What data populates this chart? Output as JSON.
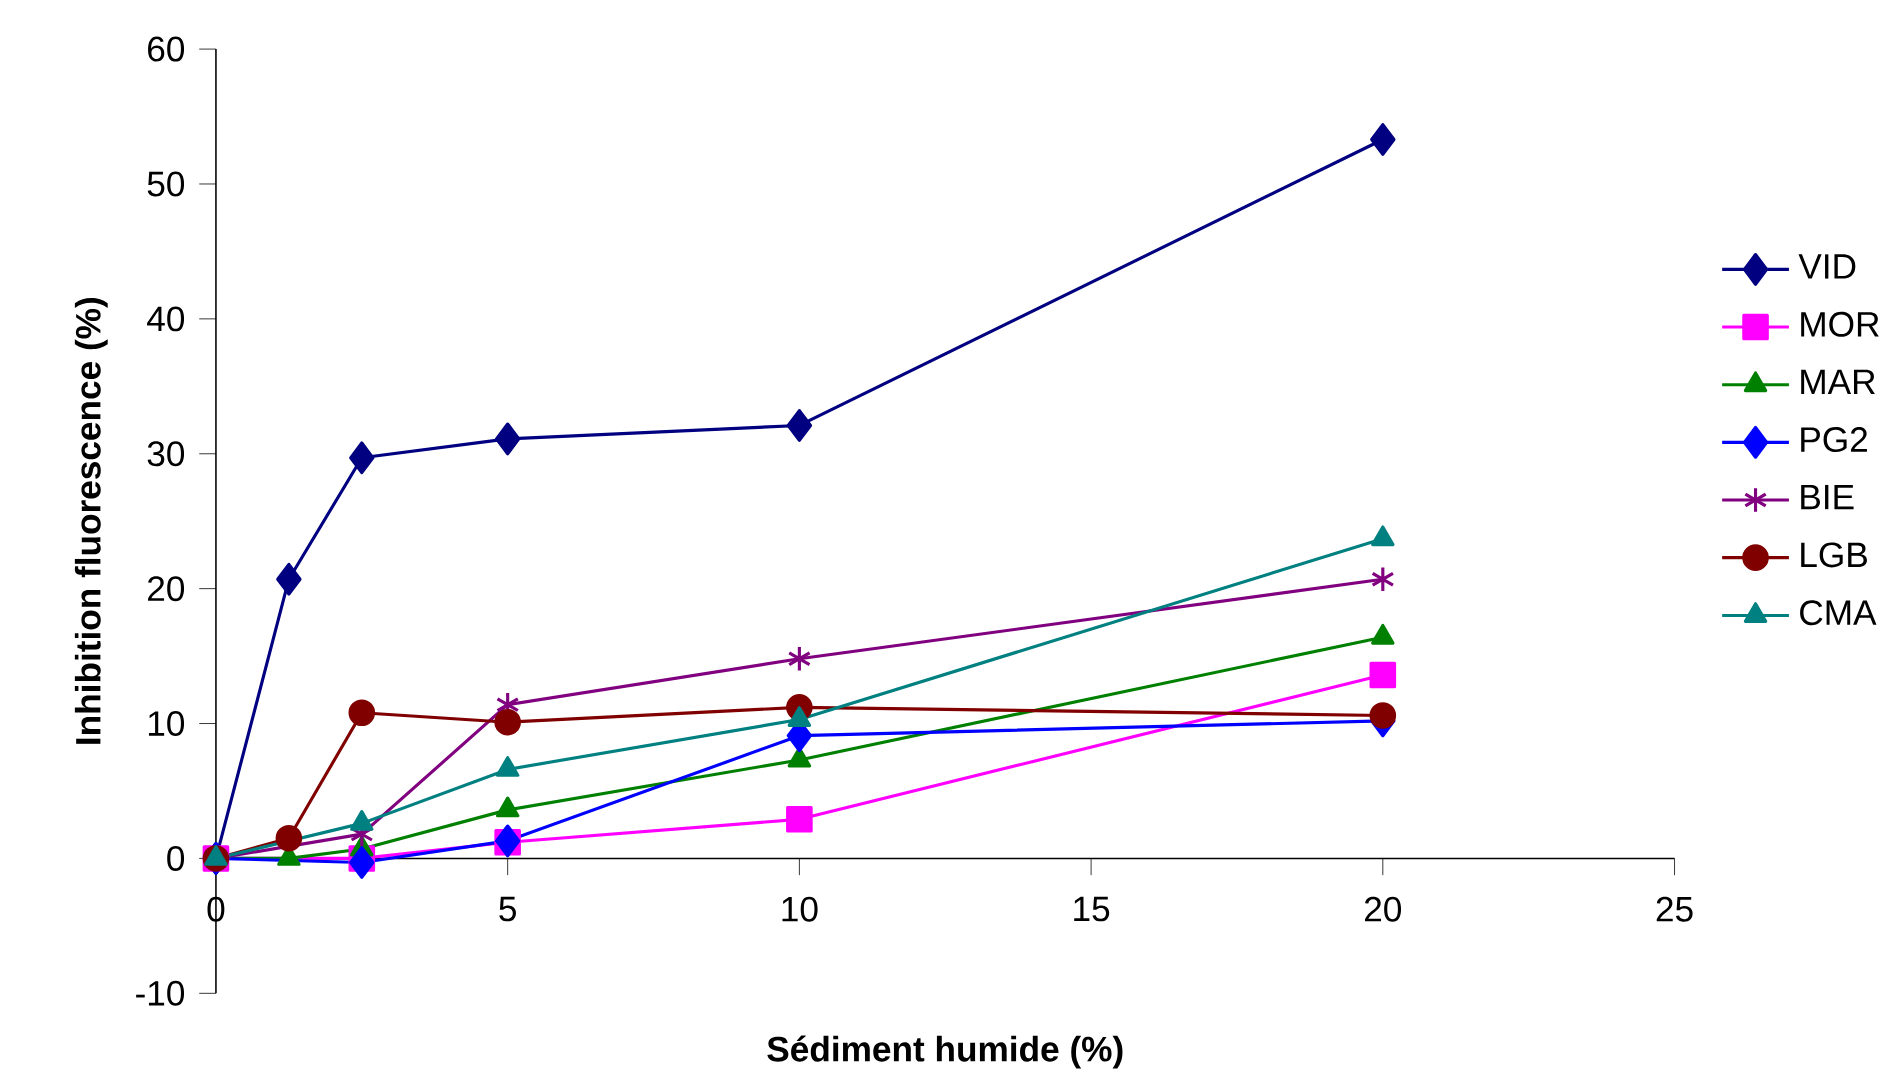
{
  "chart_data": {
    "type": "line",
    "xlabel": "Sédiment humide (%)",
    "ylabel": "Inhibition fluorescence (%)",
    "xlim": [
      0,
      25
    ],
    "xticks": [
      0,
      5,
      10,
      15,
      20,
      25
    ],
    "ylim": [
      -10,
      60
    ],
    "yticks": [
      -10,
      0,
      10,
      20,
      30,
      40,
      50,
      60
    ],
    "legend": "right",
    "line_style": "solid",
    "series": [
      {
        "name": "VID",
        "color": "#000080",
        "marker": "diamond",
        "x": [
          0,
          1.25,
          2.5,
          5,
          10,
          20
        ],
        "values": [
          0,
          20.7,
          29.7,
          31.1,
          32.1,
          53.3
        ]
      },
      {
        "name": "MOR",
        "color": "#ff00ff",
        "marker": "square",
        "x": [
          0,
          2.5,
          5,
          10,
          20
        ],
        "values": [
          0,
          0,
          1.2,
          2.9,
          13.6
        ]
      },
      {
        "name": "MAR",
        "color": "#008000",
        "marker": "triangle",
        "x": [
          0,
          1.25,
          2.5,
          5,
          10,
          20
        ],
        "values": [
          0,
          0,
          0.7,
          3.6,
          7.3,
          16.4
        ]
      },
      {
        "name": "PG2",
        "color": "#0000ff",
        "marker": "diamond",
        "x": [
          0,
          2.5,
          5,
          10,
          20
        ],
        "values": [
          0,
          -0.3,
          1.3,
          9.1,
          10.2
        ]
      },
      {
        "name": "BIE",
        "color": "#800080",
        "marker": "cross",
        "x": [
          0,
          2.5,
          5,
          10,
          20
        ],
        "values": [
          0,
          1.8,
          11.4,
          14.8,
          20.7
        ]
      },
      {
        "name": "LGB",
        "color": "#800000",
        "marker": "circle",
        "x": [
          0,
          1.25,
          2.5,
          5,
          10,
          20
        ],
        "values": [
          0,
          1.5,
          10.8,
          10.1,
          11.2,
          10.6
        ]
      },
      {
        "name": "CMA",
        "color": "#008080",
        "marker": "triangle",
        "x": [
          0,
          2.5,
          5,
          10,
          20
        ],
        "values": [
          0,
          2.6,
          6.6,
          10.3,
          23.7
        ]
      }
    ]
  }
}
